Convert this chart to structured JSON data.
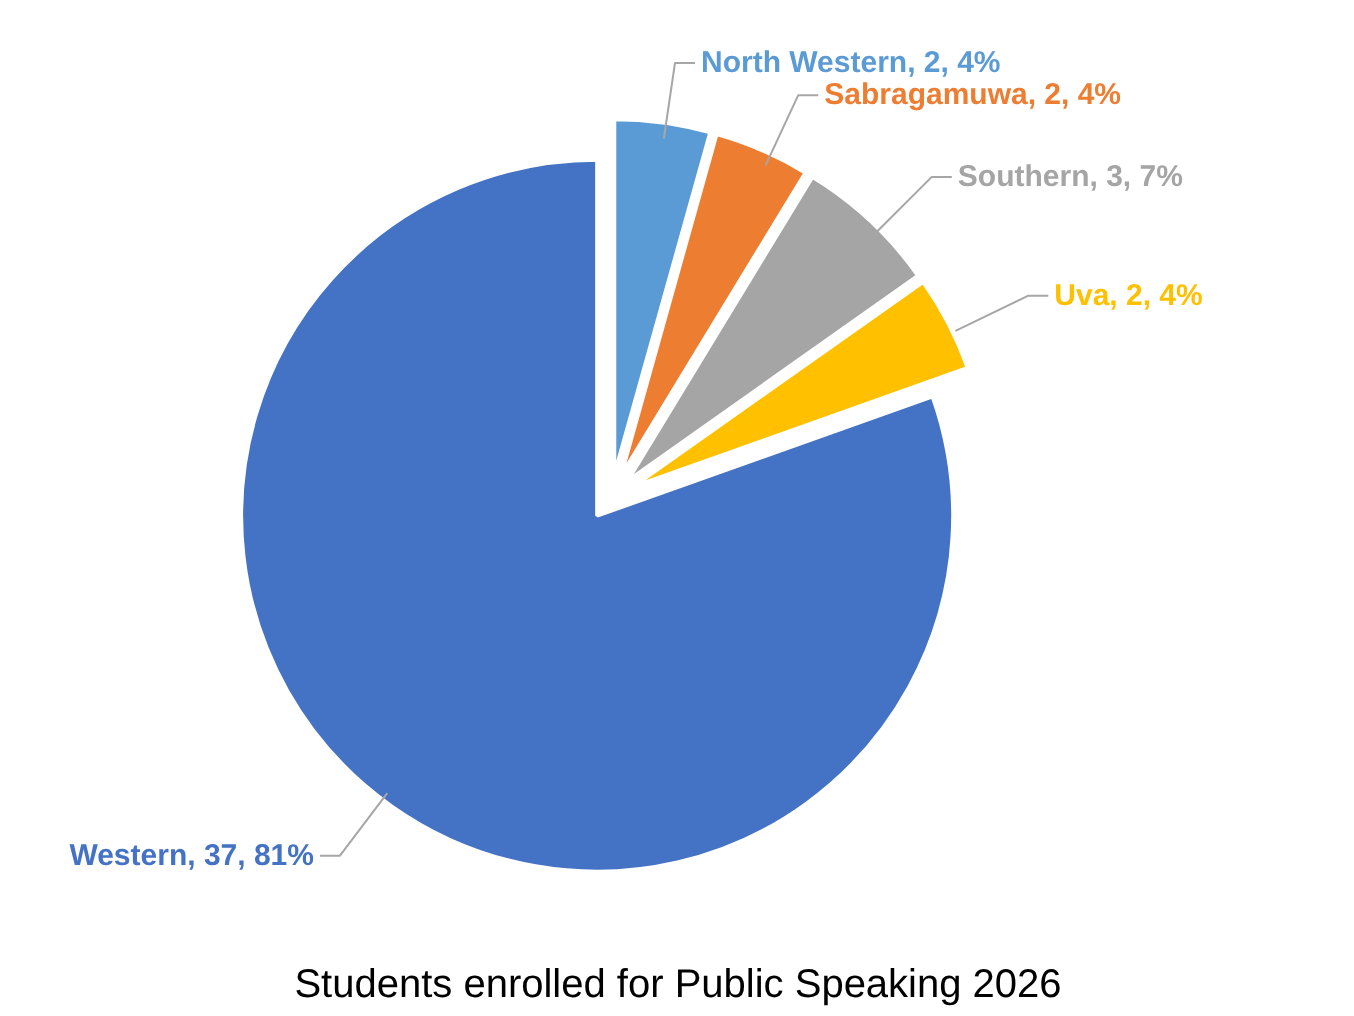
{
  "chart_data": {
    "type": "pie",
    "title": "Students enrolled for Public Speaking 2026",
    "categories": [
      "North Western",
      "Sabragamuwa",
      "Southern",
      "Uva",
      "Western"
    ],
    "values": [
      2,
      2,
      3,
      2,
      37
    ],
    "colors": [
      "#5b9bd5",
      "#ed7d31",
      "#a5a5a5",
      "#ffc000",
      "#4472c4"
    ],
    "value_labels": [
      "2, 4%",
      "2, 4%",
      "3, 7%",
      "2, 4%",
      "37, 81%"
    ]
  }
}
